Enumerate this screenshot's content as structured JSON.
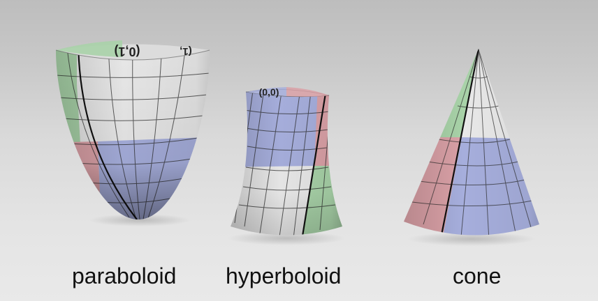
{
  "colors": {
    "red": "#d9a0a6",
    "green": "#a8d2a8",
    "blue": "#a6aedc",
    "white": "#e8e8e8",
    "grid": "#2b2b2b",
    "seam": "#111111"
  },
  "shapes": [
    {
      "id": "paraboloid",
      "caption": "paraboloid",
      "uv_labels": [
        "(0,1)",
        "(1,"
      ]
    },
    {
      "id": "hyperboloid",
      "caption": "hyperboloid",
      "uv_labels": [
        "(0,0)"
      ]
    },
    {
      "id": "cone",
      "caption": "cone",
      "uv_labels": []
    }
  ]
}
